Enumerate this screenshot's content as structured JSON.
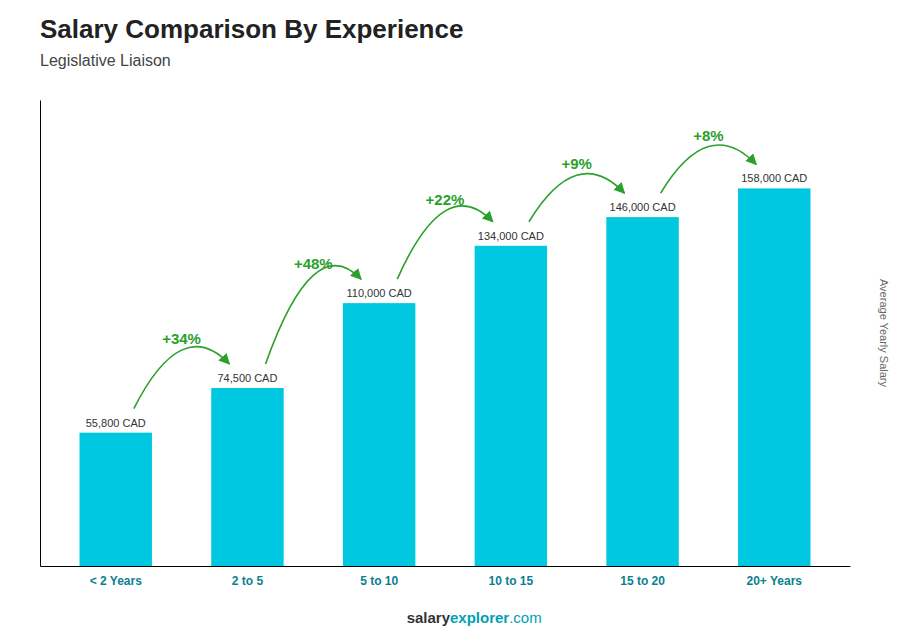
{
  "chart_data": {
    "type": "bar",
    "title": "Salary Comparison By Experience",
    "subtitle": "Legislative Liaison",
    "ylabel": "Average Yearly Salary",
    "categories": [
      "< 2 Years",
      "2 to 5",
      "5 to 10",
      "10 to 15",
      "15 to 20",
      "20+ Years"
    ],
    "values": [
      55800,
      74500,
      110000,
      134000,
      146000,
      158000
    ],
    "value_labels": [
      "55,800 CAD",
      "74,500 CAD",
      "110,000 CAD",
      "134,000 CAD",
      "146,000 CAD",
      "158,000 CAD"
    ],
    "data_labels": true,
    "annotations": [
      "+34%",
      "+48%",
      "+22%",
      "+9%",
      "+8%"
    ],
    "footer": [
      "salary",
      "explorer",
      ".com"
    ],
    "color": "#00c8e0",
    "ylim": [
      0,
      195000
    ],
    "tick_labels": "x",
    "grid": false
  }
}
